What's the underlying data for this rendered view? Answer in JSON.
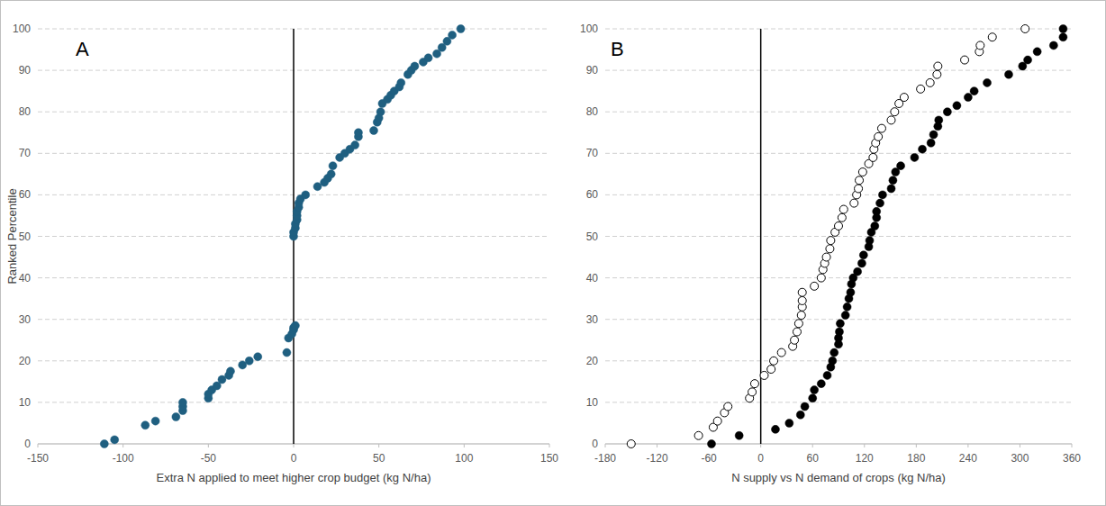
{
  "chart_data": [
    {
      "type": "scatter",
      "title": "A",
      "y_label": "Ranked Percentile",
      "x_label": "Extra N applied to meet higher crop budget (kg N/ha)",
      "xlim": [
        -150,
        150
      ],
      "xticks": [
        -150,
        -100,
        -50,
        0,
        50,
        100,
        150
      ],
      "ylim": [
        0,
        100
      ],
      "yticks": [
        0,
        10,
        20,
        30,
        40,
        50,
        60,
        70,
        80,
        90,
        100
      ],
      "grid": true,
      "vlines": [
        0
      ],
      "series": [
        {
          "color": "#1f5f80",
          "marker": "circle",
          "x": [
            -111,
            -105,
            -87,
            -81,
            -69,
            -65,
            -65,
            -65,
            -50,
            -50,
            -48,
            -45,
            -42,
            -38,
            -37,
            -30,
            -26,
            -21,
            -4,
            -3,
            -1,
            0,
            0,
            1,
            0,
            0,
            1,
            1,
            2,
            2,
            2,
            3,
            3,
            4,
            7,
            14,
            18,
            20,
            22,
            23,
            27,
            30,
            33,
            36,
            38,
            38,
            47,
            49,
            50,
            51,
            52,
            55,
            57,
            59,
            62,
            63,
            67,
            69,
            71,
            76,
            79,
            84,
            87,
            90,
            93,
            98
          ],
          "values": [
            0,
            1,
            4.5,
            5.5,
            6.5,
            8,
            9,
            10,
            11,
            12,
            13,
            14,
            15.5,
            16.5,
            17.5,
            19,
            20,
            21,
            22,
            25.5,
            26.5,
            27.5,
            28,
            28.5,
            50,
            51,
            52,
            53,
            54,
            55,
            56,
            57,
            58,
            59,
            60,
            62,
            63,
            64,
            65,
            67,
            69,
            70,
            71,
            72,
            74,
            75,
            75.5,
            77.5,
            78.5,
            80,
            82,
            83,
            84,
            85,
            86,
            87,
            89,
            90,
            91,
            92,
            93,
            94,
            95.5,
            97,
            98.5,
            100
          ]
        }
      ]
    },
    {
      "type": "scatter",
      "title": "B",
      "x_label": "N supply vs N demand of crops (kg N/ha)",
      "xlim": [
        -180,
        360
      ],
      "xticks": [
        -180,
        -120,
        -60,
        0,
        60,
        120,
        180,
        240,
        300,
        360
      ],
      "ylim": [
        0,
        100
      ],
      "yticks": [
        0,
        10,
        20,
        30,
        40,
        50,
        60,
        70,
        80,
        90,
        100
      ],
      "grid": true,
      "vlines": [
        0
      ],
      "series": [
        {
          "color": "#000000",
          "marker": "open-circle",
          "x": [
            -150,
            -72,
            -55,
            -50,
            -42,
            -38,
            -13,
            -10,
            -7,
            4,
            12,
            15,
            24,
            37,
            39,
            42,
            44,
            47,
            48,
            48,
            48,
            62,
            70,
            72,
            74,
            76,
            80,
            81,
            86,
            90,
            94,
            96,
            108,
            111,
            113,
            114,
            118,
            125,
            130,
            131,
            133,
            136,
            140,
            151,
            155,
            160,
            166,
            185,
            196,
            204,
            205,
            236,
            253,
            254,
            268,
            306
          ],
          "values": [
            0,
            2,
            4,
            5.5,
            7.5,
            9,
            11,
            12.5,
            14.5,
            16.5,
            18,
            20,
            22,
            23.5,
            25,
            27,
            29,
            31,
            33,
            34.5,
            36.5,
            38,
            40,
            42,
            43.5,
            45,
            47,
            49,
            51,
            52.5,
            54.5,
            56.5,
            58,
            60,
            61.5,
            63.5,
            65.5,
            67.5,
            69,
            71,
            72.5,
            74,
            76,
            78,
            80,
            82,
            83.5,
            85.5,
            87,
            89,
            91,
            92.5,
            94.5,
            96,
            98,
            100
          ]
        },
        {
          "color": "#000000",
          "marker": "circle",
          "x": [
            -57,
            -25,
            17,
            33,
            46,
            51,
            60,
            62,
            70,
            77,
            81,
            83,
            85,
            90,
            90,
            91,
            92,
            98,
            100,
            102,
            104,
            105,
            107,
            112,
            117,
            119,
            125,
            126,
            128,
            132,
            134,
            134,
            138,
            141,
            151,
            153,
            156,
            162,
            178,
            187,
            197,
            200,
            205,
            206,
            216,
            227,
            240,
            247,
            262,
            287,
            303,
            309,
            320,
            339,
            350,
            350
          ],
          "values": [
            0,
            2,
            3.5,
            5,
            7,
            9,
            11,
            13,
            14.5,
            16.5,
            18.5,
            20,
            22,
            24,
            25.5,
            27,
            29,
            31,
            33,
            35,
            36.5,
            38.5,
            40,
            41.5,
            43.5,
            45.5,
            47.5,
            49,
            51,
            52.5,
            54.5,
            56,
            58,
            60,
            61.5,
            63.5,
            65.5,
            67,
            69,
            71,
            72.5,
            74.5,
            76.5,
            78,
            80,
            81.5,
            83.5,
            85,
            87,
            89,
            91,
            92.5,
            94.5,
            96,
            98,
            100
          ]
        }
      ]
    }
  ]
}
